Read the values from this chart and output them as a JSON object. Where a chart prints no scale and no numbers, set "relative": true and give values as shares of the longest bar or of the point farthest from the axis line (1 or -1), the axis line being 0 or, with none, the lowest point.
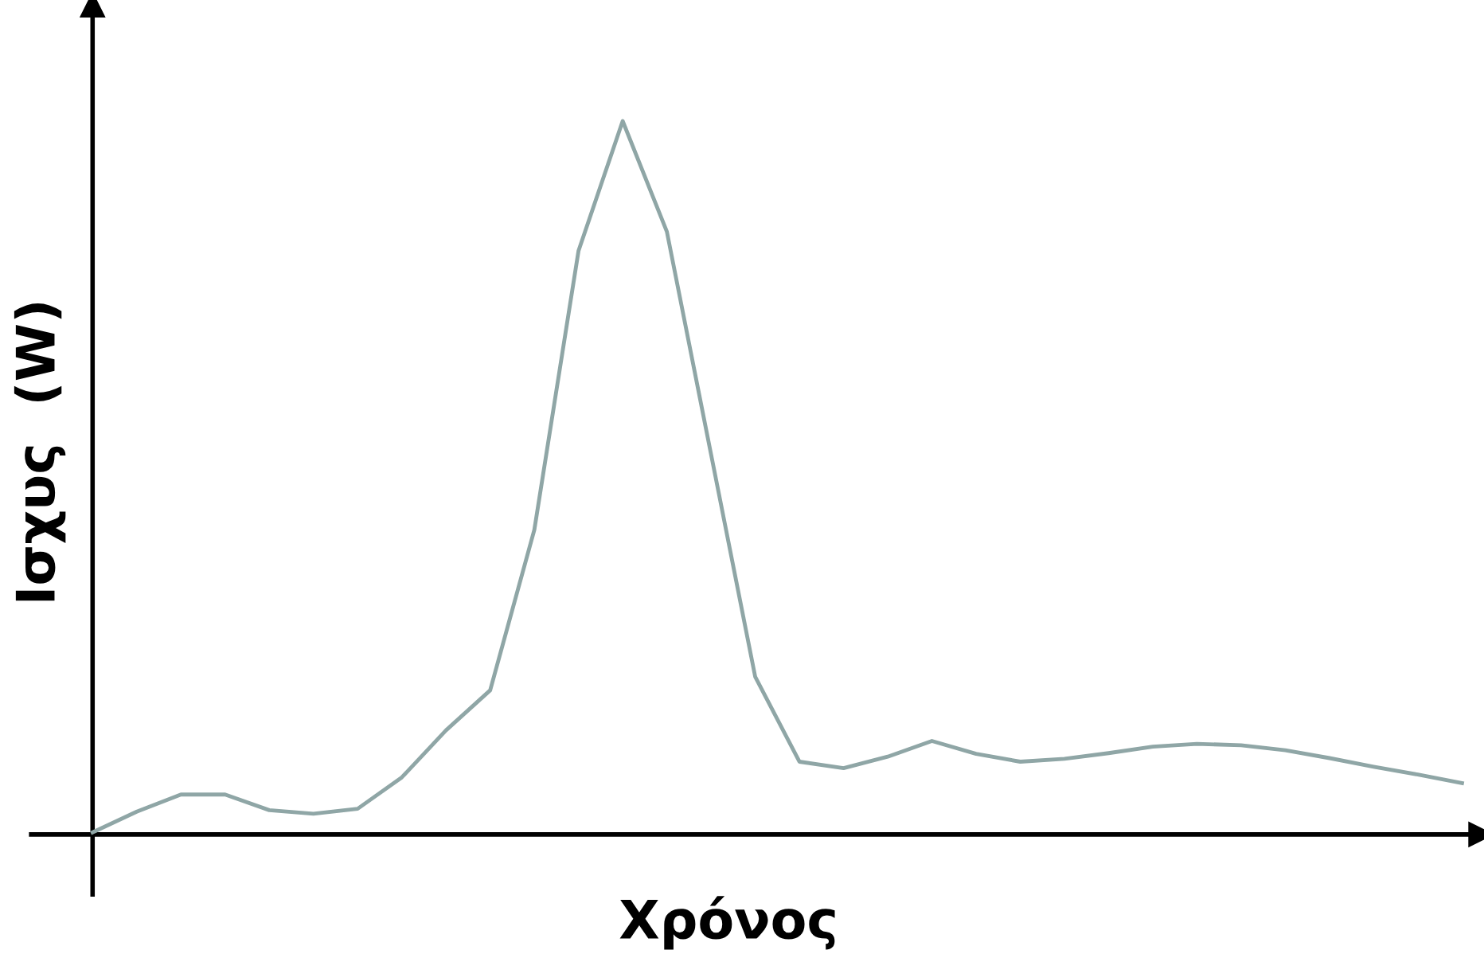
{
  "chart_data": {
    "type": "line",
    "relative": true,
    "xlabel": "Χρόνος",
    "ylabel": "Ισχυς  (W)",
    "categories": [
      null,
      null,
      null,
      null,
      null,
      null,
      null,
      null,
      null,
      null,
      null,
      null,
      null,
      null,
      null,
      null,
      null,
      null,
      null,
      null,
      null,
      null,
      null,
      null,
      null,
      null,
      null,
      null,
      null,
      null,
      null,
      null
    ],
    "series": [
      {
        "color": "#8fa6a6",
        "values": [
          0.003,
          0.032,
          0.056,
          0.056,
          0.034,
          0.029,
          0.036,
          0.08,
          0.146,
          0.202,
          0.427,
          0.818,
          1.0,
          0.845,
          0.533,
          0.221,
          0.102,
          0.093,
          0.109,
          0.131,
          0.113,
          0.102,
          0.106,
          0.114,
          0.123,
          0.127,
          0.125,
          0.118,
          0.107,
          0.095,
          0.084,
          0.072
        ]
      }
    ],
    "marker": "none",
    "line_style": "solid"
  }
}
